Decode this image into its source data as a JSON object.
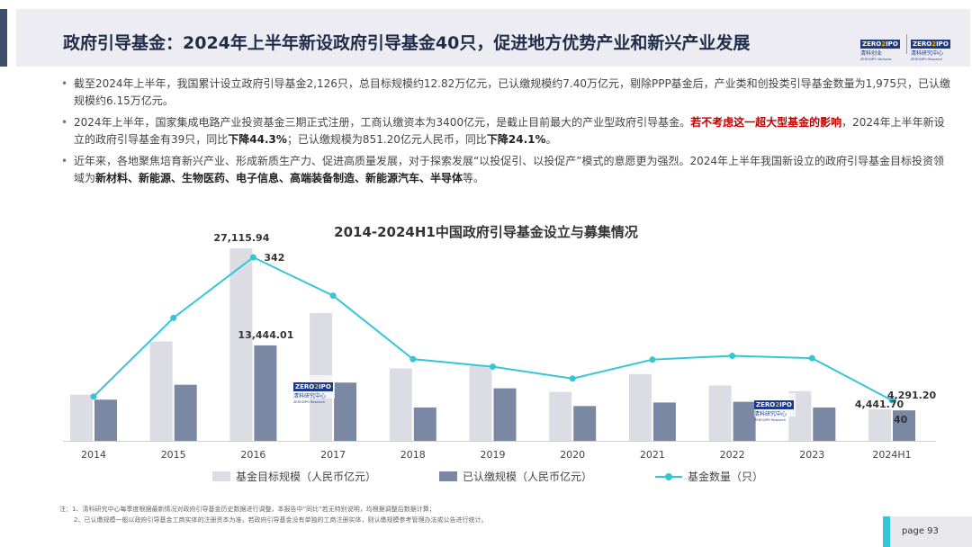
{
  "header": {
    "title": "政府引导基金：2024年上半年新设政府引导基金40只，促进地方优势产业和新兴产业发展",
    "logo1": {
      "tag_a": "ZERO",
      "tag_o": "2",
      "tag_b": "IPO",
      "cn": "清科创业",
      "en": "ZERO2IPO Ventures"
    },
    "logo2": {
      "tag_a": "ZERO",
      "tag_o": "2",
      "tag_b": "IPO",
      "cn": "清科研究中心",
      "en": "ZERO2IPO Research"
    }
  },
  "bullets": {
    "b1": "截至2024年上半年，我国累计设立政府引导基金2,126只，总目标规模约12.82万亿元，已认缴规模约7.40万亿元，剔除PPP基金后，产业类和创投类引导基金数量为1,975只，已认缴规模约6.15万亿元。",
    "b2_p1": "2024年上半年，国家集成电路产业投资基金三期正式注册，工商认缴资本为3400亿元，是截止目前最大的产业型政府引导基金。",
    "b2_red": "若不考虑这一超大型基金的影响",
    "b2_p2": "，2024年上半年新设立的政府引导基金有39只，同比",
    "b2_bold1": "下降44.3%",
    "b2_p3": "；已认缴规模为851.20亿元人民币，同比",
    "b2_bold2": "下降24.1%",
    "b2_p4": "。",
    "b3_p1": "近年来，各地聚焦培育新兴产业、形成新质生产力、促进高质量发展，对于探索发展“以投促引、以投促产”模式的意愿更为强烈。2024年上半年我国新设立的政府引导基金目标投资领域为",
    "b3_bold": "新材料、新能源、生物医药、电子信息、高端装备制造、新能源汽车、半导体",
    "b3_p2": "等。"
  },
  "chart_data": {
    "type": "bar",
    "title": "2014-2024H1中国政府引导基金设立与募集情况",
    "categories": [
      "2014",
      "2015",
      "2016",
      "2017",
      "2018",
      "2019",
      "2020",
      "2021",
      "2022",
      "2023",
      "2024H1"
    ],
    "series": [
      {
        "name": "基金目标规模（人民币亿元）",
        "type": "bar",
        "color": "#dcdde4",
        "values": [
          6500,
          14000,
          27115.94,
          18000,
          10200,
          10600,
          6900,
          9400,
          7800,
          7000,
          4441.7
        ]
      },
      {
        "name": "已认缴规模（人民币亿元）",
        "type": "bar",
        "color": "#7b88a4",
        "values": [
          5800,
          7900,
          13444.01,
          8200,
          4700,
          7400,
          4900,
          5400,
          5500,
          4700,
          4291.2
        ]
      },
      {
        "name": "基金数量（只）",
        "type": "line",
        "color": "#35c6d6",
        "values": [
          48,
          214,
          342,
          261,
          127,
          111,
          86,
          126,
          134,
          129,
          40
        ]
      }
    ],
    "data_labels": [
      {
        "series": 0,
        "index": 2,
        "text": "27,115.94"
      },
      {
        "series": 1,
        "index": 2,
        "text": "13,444.01"
      },
      {
        "series": 2,
        "index": 2,
        "text": "342"
      },
      {
        "series": 0,
        "index": 10,
        "text": "4,441.70"
      },
      {
        "series": 1,
        "index": 10,
        "text": "4,291.20"
      },
      {
        "series": 2,
        "index": 10,
        "text": "40"
      }
    ],
    "legend": "bottom",
    "grid": false
  },
  "watermark": {
    "tag_a": "ZERO",
    "tag_o": "2",
    "tag_b": "IPO",
    "cn": "清科研究中心",
    "en": "ZERO2IPO Research"
  },
  "notes": {
    "n1": "注：1、清科研究中心每季度根据最新情况对政府引导基金历史数据进行调整，本报告中“同比”若无特别说明，均根据调整后数据计算；",
    "n2": "2、已认缴规模一般以政府引导基金工商实体的注册资本为准，若政府引导基金没有单独的工商注册实体，则认缴规模参考管理办法或公告进行统计。"
  },
  "footer": {
    "page_label": "page  93"
  }
}
